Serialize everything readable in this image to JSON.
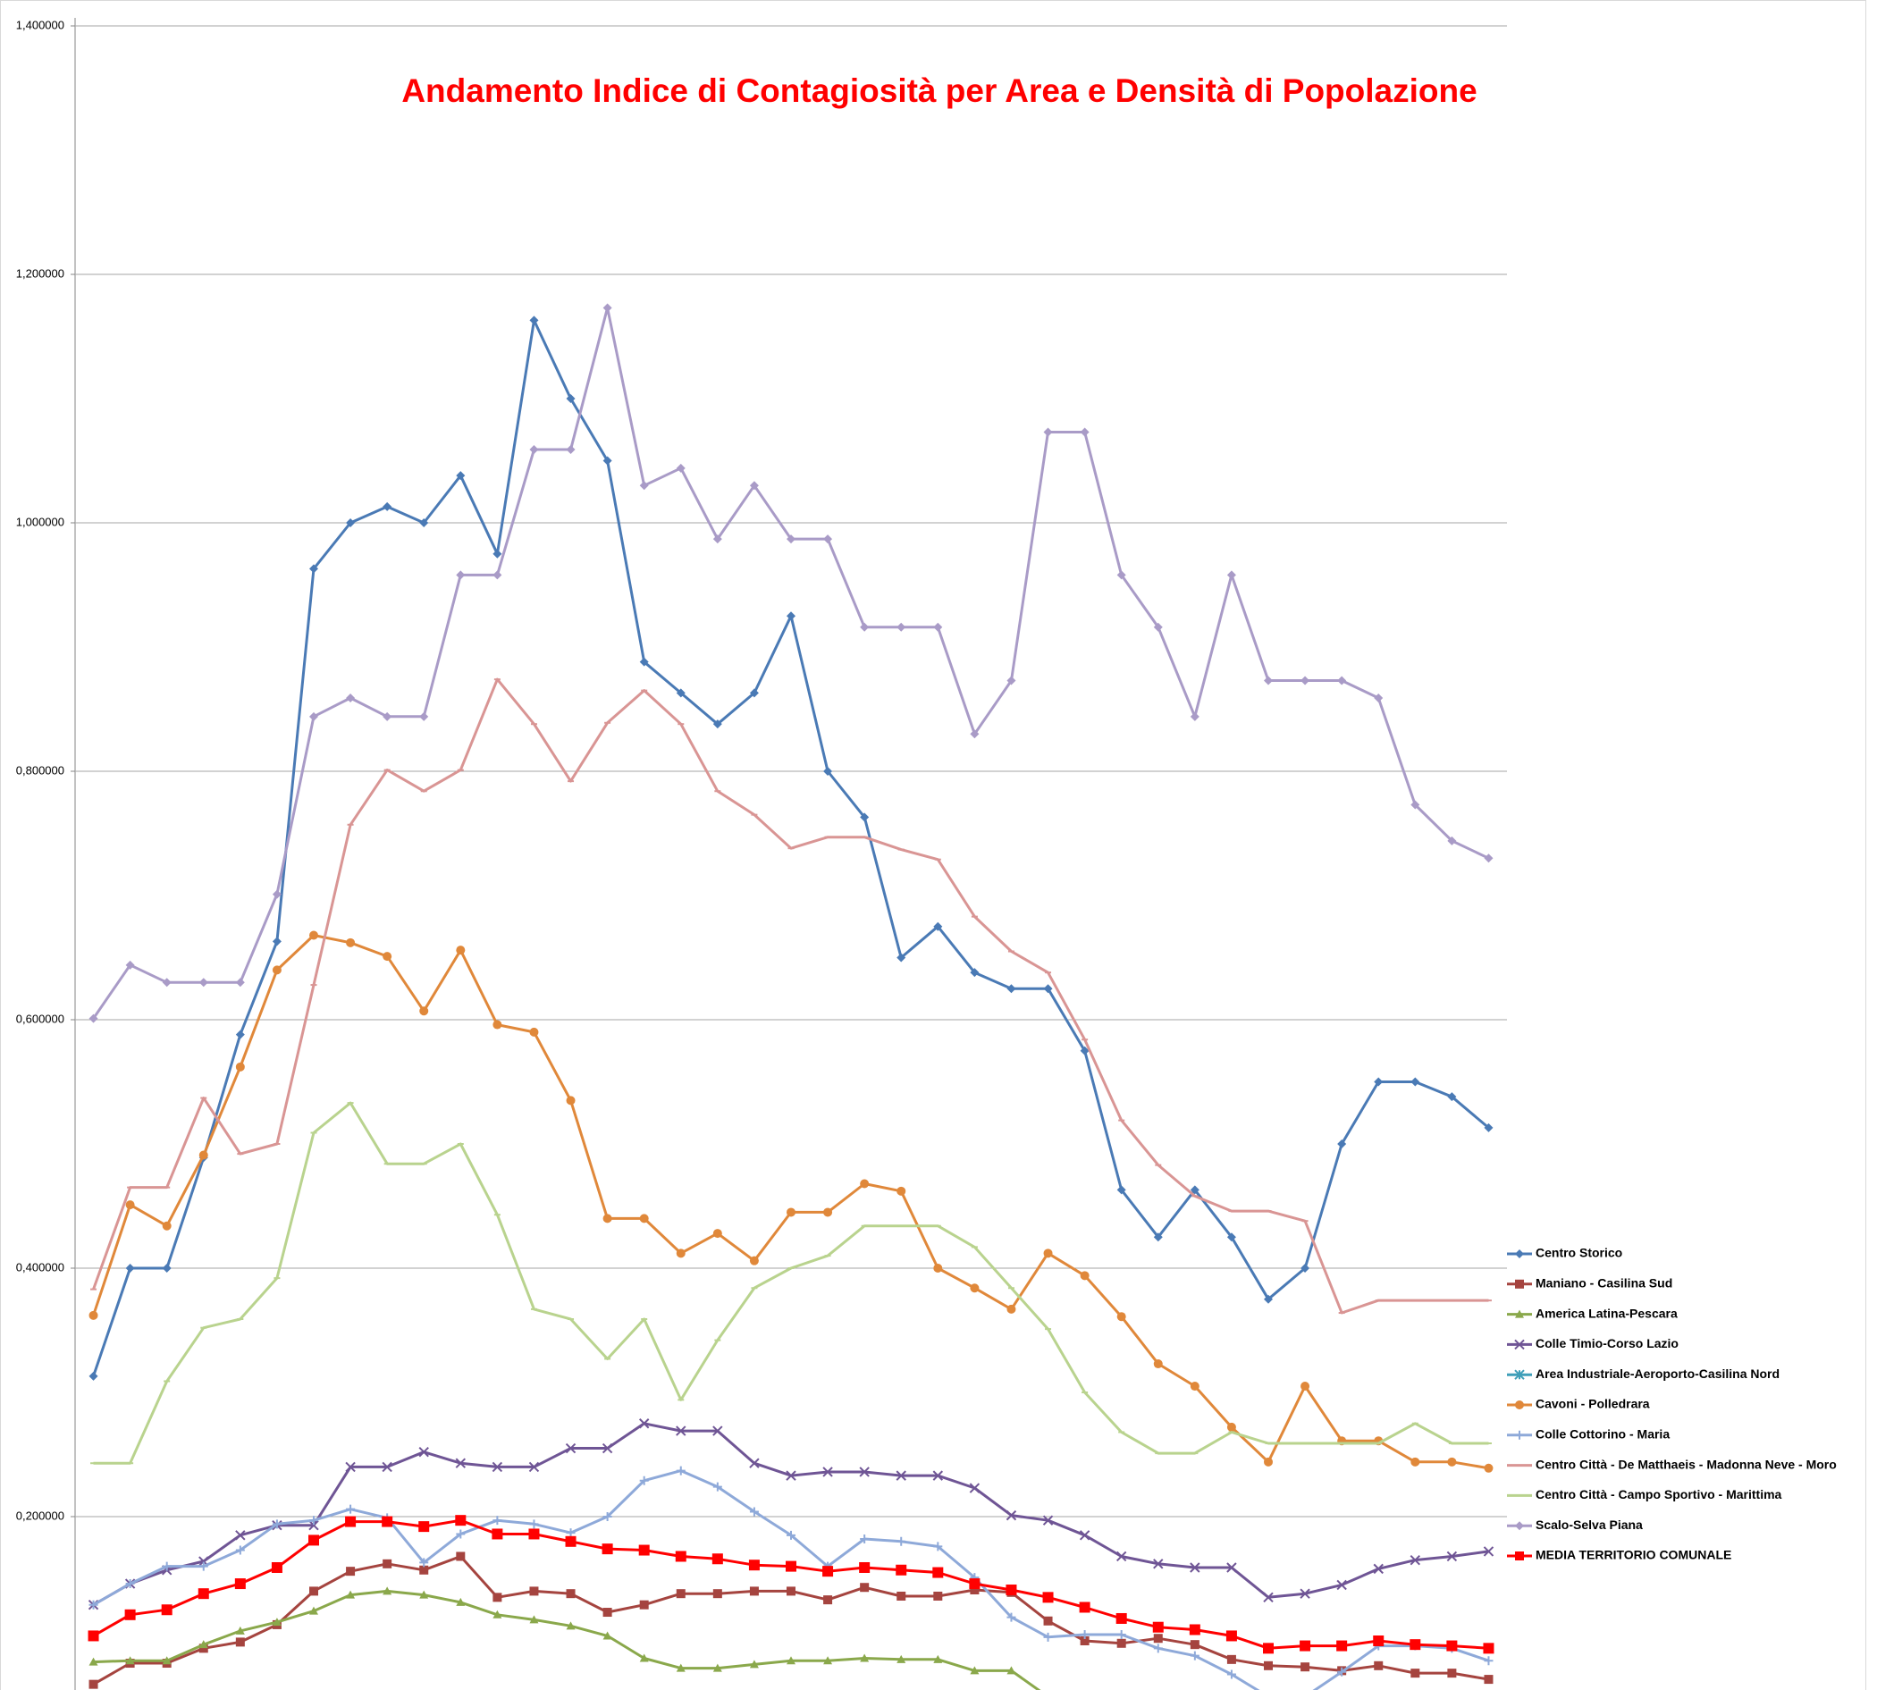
{
  "chart_data": {
    "type": "line",
    "title": "Andamento Indice di Contagiosità per Area e Densità di Popolazione",
    "categories": [
      null,
      null,
      null,
      null,
      null,
      null,
      null,
      null,
      null,
      null,
      null,
      null,
      null,
      null,
      null,
      null,
      null,
      null,
      null,
      null,
      null,
      null,
      null,
      null,
      null,
      null,
      null,
      null,
      null,
      null,
      null,
      null,
      null,
      null,
      null,
      null,
      null,
      null,
      null
    ],
    "ylim": [
      0.06,
      1.4
    ],
    "yticks": [
      {
        "value": 0.2,
        "label": "0,200000"
      },
      {
        "value": 0.4,
        "label": "0,400000"
      },
      {
        "value": 0.6,
        "label": "0,600000"
      },
      {
        "value": 0.8,
        "label": "0,800000"
      },
      {
        "value": 1.0,
        "label": "1,000000"
      },
      {
        "value": 1.2,
        "label": "1,200000"
      },
      {
        "value": 1.4,
        "label": "1,400000"
      }
    ],
    "grid": true,
    "legend": "right",
    "series": [
      {
        "name": "Centro Storico",
        "color": "#4a7ab5",
        "marker": "diamond",
        "values": [
          0.313,
          0.4,
          0.4,
          0.489,
          0.588,
          0.663,
          0.963,
          1.0,
          1.013,
          1.0,
          1.038,
          0.975,
          1.163,
          1.1,
          1.05,
          0.888,
          0.863,
          0.838,
          0.863,
          0.925,
          0.8,
          0.763,
          0.65,
          0.675,
          0.638,
          0.625,
          0.625,
          0.575,
          0.463,
          0.425,
          0.463,
          0.425,
          0.375,
          0.4,
          0.5,
          0.55,
          0.55,
          0.538,
          0.513
        ]
      },
      {
        "name": "Maniano - Casilina Sud",
        "color": "#a5443f",
        "marker": "square",
        "values": [
          0.065,
          0.082,
          0.082,
          0.094,
          0.099,
          0.113,
          0.14,
          0.156,
          0.162,
          0.157,
          0.168,
          0.135,
          0.14,
          0.138,
          0.123,
          0.129,
          0.138,
          0.138,
          0.14,
          0.14,
          0.133,
          0.143,
          0.136,
          0.136,
          0.141,
          0.139,
          0.116,
          0.1,
          0.098,
          0.102,
          0.097,
          0.085,
          0.08,
          0.079,
          0.076,
          0.08,
          0.074,
          0.074,
          0.069
        ]
      },
      {
        "name": "America Latina-Pescara",
        "color": "#8aa84b",
        "marker": "triangle",
        "values": [
          0.083,
          0.084,
          0.084,
          0.097,
          0.108,
          0.115,
          0.124,
          0.137,
          0.14,
          0.137,
          0.131,
          0.121,
          0.117,
          0.112,
          0.104,
          0.086,
          0.078,
          0.078,
          0.081,
          0.084,
          0.084,
          0.086,
          0.085,
          0.085,
          0.076,
          0.076,
          0.055,
          null,
          null,
          null,
          null,
          null,
          null,
          null,
          null,
          null,
          null,
          null,
          null
        ]
      },
      {
        "name": "Colle Timio-Corso Lazio",
        "color": "#6f5595",
        "marker": "x",
        "values": [
          0.129,
          0.146,
          0.157,
          0.164,
          0.185,
          0.193,
          0.193,
          0.24,
          0.24,
          0.252,
          0.243,
          0.24,
          0.24,
          0.255,
          0.255,
          0.275,
          0.269,
          0.269,
          0.243,
          0.233,
          0.236,
          0.236,
          0.233,
          0.233,
          0.223,
          0.201,
          0.197,
          0.185,
          0.168,
          0.162,
          0.159,
          0.159,
          0.135,
          0.138,
          0.145,
          0.158,
          0.165,
          0.168,
          0.172
        ]
      },
      {
        "name": "Area Industriale-Aeroporto-Casilina Nord",
        "color": "#3f9fb9",
        "marker": "star",
        "values": [
          null,
          null,
          null,
          null,
          null,
          null,
          null,
          null,
          null,
          null,
          null,
          null,
          null,
          null,
          null,
          null,
          null,
          null,
          null,
          null,
          null,
          null,
          null,
          null,
          null,
          null,
          null,
          null,
          null,
          null,
          null,
          null,
          null,
          null,
          null,
          null,
          null,
          null,
          null
        ]
      },
      {
        "name": "Cavoni - Polledrara",
        "color": "#e0883a",
        "marker": "circle",
        "values": [
          0.362,
          0.451,
          0.434,
          0.491,
          0.562,
          0.64,
          0.668,
          0.662,
          0.651,
          0.607,
          0.656,
          0.596,
          0.59,
          0.535,
          0.44,
          0.44,
          0.412,
          0.428,
          0.406,
          0.445,
          0.445,
          0.468,
          0.462,
          0.4,
          0.384,
          0.367,
          0.412,
          0.394,
          0.361,
          0.323,
          0.305,
          0.272,
          0.244,
          0.305,
          0.261,
          0.261,
          0.244,
          0.244,
          0.239
        ]
      },
      {
        "name": "Colle Cottorino - Maria",
        "color": "#8ea9d9",
        "marker": "plus",
        "values": [
          0.129,
          0.146,
          0.16,
          0.16,
          0.173,
          0.194,
          0.197,
          0.206,
          0.199,
          0.163,
          0.186,
          0.197,
          0.194,
          0.187,
          0.2,
          0.229,
          0.237,
          0.224,
          0.204,
          0.185,
          0.16,
          0.182,
          0.18,
          0.176,
          0.151,
          0.119,
          0.103,
          0.105,
          0.105,
          0.094,
          0.088,
          0.073,
          0.055,
          0.055,
          0.075,
          0.096,
          0.096,
          0.094,
          0.084
        ]
      },
      {
        "name": "Centro Città - De Matthaeis - Madonna Neve - Moro",
        "color": "#d99594",
        "marker": "dash",
        "values": [
          0.383,
          0.465,
          0.465,
          0.537,
          0.492,
          0.5,
          0.628,
          0.757,
          0.801,
          0.784,
          0.801,
          0.874,
          0.838,
          0.792,
          0.839,
          0.865,
          0.838,
          0.784,
          0.765,
          0.738,
          0.747,
          0.747,
          0.737,
          0.729,
          0.683,
          0.655,
          0.638,
          0.584,
          0.519,
          0.483,
          0.458,
          0.446,
          0.446,
          0.438,
          0.364,
          0.374,
          0.374,
          0.374,
          0.374
        ]
      },
      {
        "name": "Centro Città - Campo Sportivo - Marittima",
        "color": "#b9d38e",
        "marker": "dash",
        "values": [
          0.243,
          0.243,
          0.309,
          0.352,
          0.359,
          0.392,
          0.509,
          0.533,
          0.484,
          0.484,
          0.5,
          0.443,
          0.367,
          0.359,
          0.327,
          0.359,
          0.294,
          0.342,
          0.384,
          0.4,
          0.41,
          0.434,
          0.434,
          0.434,
          0.417,
          0.384,
          0.351,
          0.3,
          0.268,
          0.251,
          0.251,
          0.268,
          0.259,
          0.259,
          0.259,
          0.259,
          0.275,
          0.259,
          0.259
        ]
      },
      {
        "name": "Scalo-Selva Piana",
        "color": "#a99bc7",
        "marker": "diamond",
        "values": [
          0.601,
          0.644,
          0.63,
          0.63,
          0.63,
          0.701,
          0.844,
          0.859,
          0.844,
          0.844,
          0.958,
          0.958,
          1.059,
          1.059,
          1.173,
          1.03,
          1.044,
          0.987,
          1.03,
          0.987,
          0.987,
          0.916,
          0.916,
          0.916,
          0.83,
          0.873,
          1.073,
          1.073,
          0.958,
          0.916,
          0.844,
          0.958,
          0.873,
          0.873,
          0.873,
          0.859,
          0.773,
          0.744,
          0.73
        ]
      },
      {
        "name": "MEDIA TERRITORIO COMUNALE",
        "color": "#ff0000",
        "marker": "square",
        "values": [
          0.104,
          0.121,
          0.125,
          0.138,
          0.146,
          0.159,
          0.181,
          0.196,
          0.196,
          0.192,
          0.197,
          0.186,
          0.186,
          0.18,
          0.174,
          0.173,
          0.168,
          0.166,
          0.161,
          0.16,
          0.156,
          0.159,
          0.157,
          0.155,
          0.146,
          0.141,
          0.135,
          0.127,
          0.118,
          0.111,
          0.109,
          0.104,
          0.094,
          0.096,
          0.096,
          0.1,
          0.097,
          0.096,
          0.094
        ]
      }
    ]
  }
}
